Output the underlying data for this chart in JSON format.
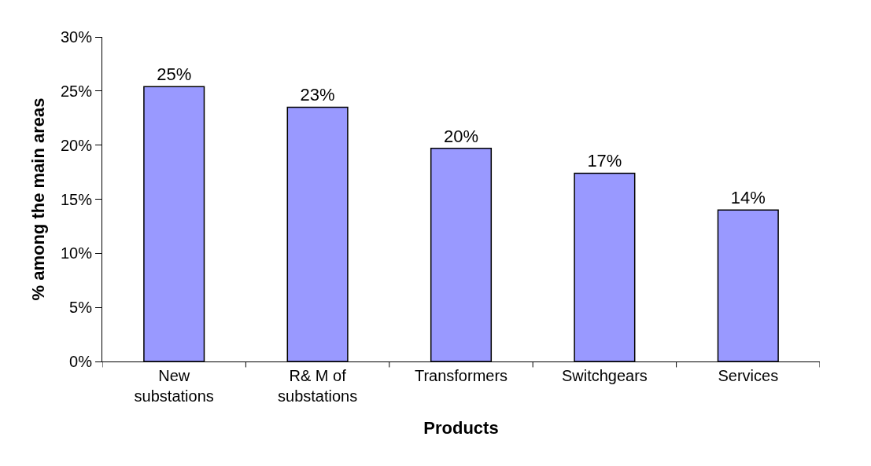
{
  "chart_data": {
    "type": "bar",
    "categories": [
      "New substations",
      "R& M of substations",
      "Transformers",
      "Switchgears",
      "Services"
    ],
    "values": [
      25.4,
      23.5,
      19.7,
      17.4,
      14.0
    ],
    "value_labels": [
      "25%",
      "23%",
      "20%",
      "17%",
      "14%"
    ],
    "color": "#9999ff",
    "xlabel": "Products",
    "ylabel": "% among the main areas",
    "ylim": [
      0,
      30
    ],
    "yticks": [
      {
        "value": 0,
        "label": "0%"
      },
      {
        "value": 5,
        "label": "5%"
      },
      {
        "value": 10,
        "label": "10%"
      },
      {
        "value": 15,
        "label": "15%"
      },
      {
        "value": 20,
        "label": "20%"
      },
      {
        "value": 25,
        "label": "25%"
      },
      {
        "value": 30,
        "label": "30%"
      }
    ],
    "data_labels": false
  }
}
